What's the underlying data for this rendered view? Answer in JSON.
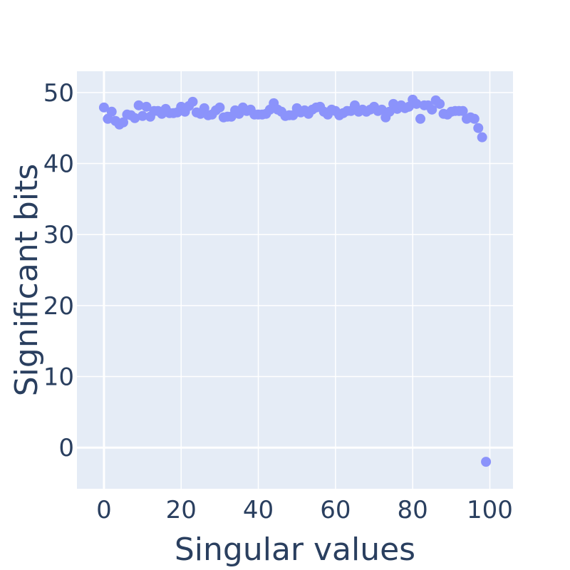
{
  "chart_data": {
    "type": "scatter",
    "xlabel": "Singular values",
    "ylabel": "Significant bits",
    "xlim": [
      -7,
      106
    ],
    "ylim": [
      -5.8,
      53
    ],
    "x_ticks": [
      0,
      20,
      40,
      60,
      80,
      100
    ],
    "y_ticks": [
      0,
      10,
      20,
      30,
      40,
      50
    ],
    "x_tick_labels": [
      "0",
      "20",
      "40",
      "60",
      "80",
      "100"
    ],
    "y_tick_labels": [
      "0",
      "10",
      "20",
      "30",
      "40",
      "50"
    ],
    "grid": true,
    "legend": "none",
    "colors": {
      "plot_bg": "#e5ecf6",
      "marker": "#8b93fb",
      "text": "#2a3f5f"
    },
    "series": [
      {
        "x": [
          0,
          1,
          2,
          3,
          4,
          5,
          6,
          7,
          8,
          9,
          10,
          11,
          12,
          13,
          14,
          15,
          16,
          17,
          18,
          19,
          20,
          21,
          22,
          23,
          24,
          25,
          26,
          27,
          28,
          29,
          30,
          31,
          32,
          33,
          34,
          35,
          36,
          37,
          38,
          39,
          40,
          41,
          42,
          43,
          44,
          45,
          46,
          47,
          48,
          49,
          50,
          51,
          52,
          53,
          54,
          55,
          56,
          57,
          58,
          59,
          60,
          61,
          62,
          63,
          64,
          65,
          66,
          67,
          68,
          69,
          70,
          71,
          72,
          73,
          74,
          75,
          76,
          77,
          78,
          79,
          80,
          81,
          82,
          83,
          84,
          85,
          86,
          87,
          88,
          89,
          90,
          91,
          92,
          93,
          94,
          95,
          96,
          97,
          98,
          99
        ],
        "y": [
          47.9,
          46.3,
          47.3,
          46.0,
          45.5,
          45.8,
          46.9,
          46.8,
          46.4,
          48.2,
          46.7,
          48.0,
          46.6,
          47.4,
          47.4,
          47.0,
          47.7,
          47.1,
          47.1,
          47.2,
          48.0,
          47.3,
          48.1,
          48.7,
          47.2,
          47.0,
          47.8,
          46.8,
          46.9,
          47.5,
          47.9,
          46.5,
          46.6,
          46.6,
          47.5,
          47.0,
          47.9,
          47.4,
          47.6,
          46.9,
          46.9,
          46.9,
          47.0,
          47.6,
          48.5,
          47.6,
          47.3,
          46.7,
          46.8,
          46.8,
          47.8,
          47.2,
          47.5,
          47.0,
          47.6,
          47.9,
          48.0,
          47.3,
          46.9,
          47.6,
          47.4,
          46.8,
          47.1,
          47.4,
          47.4,
          48.2,
          47.3,
          47.6,
          47.3,
          47.6,
          48.0,
          47.4,
          47.6,
          46.5,
          47.3,
          48.4,
          47.7,
          48.2,
          47.8,
          48.0,
          49.0,
          48.4,
          46.3,
          48.2,
          48.2,
          47.6,
          48.9,
          48.4,
          47.0,
          46.9,
          47.3,
          47.4,
          47.4,
          47.4,
          46.3,
          46.5,
          46.3,
          45.0,
          43.7,
          -2.0
        ]
      }
    ]
  }
}
